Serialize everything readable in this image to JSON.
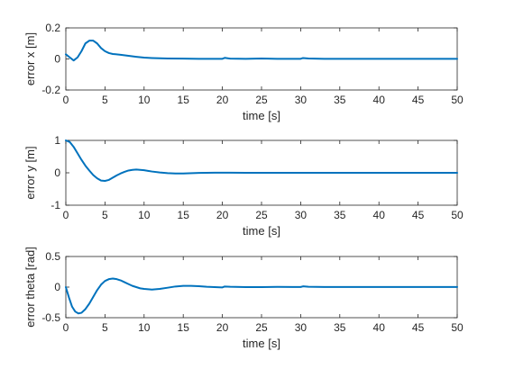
{
  "figure": {
    "background": "#ffffff",
    "line_color": "#0072BD",
    "axis_color": "#262626"
  },
  "chart_data": [
    {
      "type": "line",
      "xlabel": "time [s]",
      "ylabel": "error x [m]",
      "xlim": [
        0,
        50
      ],
      "ylim": [
        -0.2,
        0.2
      ],
      "xticks": [
        0,
        5,
        10,
        15,
        20,
        25,
        30,
        35,
        40,
        45,
        50
      ],
      "yticks": [
        -0.2,
        0,
        0.2
      ],
      "ytick_labels": [
        "-0.2",
        "0",
        "0.2"
      ],
      "grid": false,
      "series": [
        {
          "x": [
            0,
            0.5,
            1,
            1.5,
            2,
            2.5,
            3,
            3.5,
            4,
            4.5,
            5,
            5.5,
            6,
            7,
            8,
            9,
            10,
            11,
            12,
            13,
            15,
            17,
            19,
            20,
            20.3,
            21,
            23,
            25,
            27,
            29,
            30,
            30.3,
            31,
            33,
            35,
            40,
            45,
            50
          ],
          "y": [
            0.03,
            0.01,
            -0.01,
            0.01,
            0.05,
            0.1,
            0.118,
            0.118,
            0.1,
            0.07,
            0.05,
            0.038,
            0.032,
            0.027,
            0.02,
            0.014,
            0.009,
            0.006,
            0.004,
            0.003,
            0.002,
            0.001,
            0.0008,
            0.0008,
            0.007,
            0.002,
            0.001,
            0.003,
            0.001,
            0.001,
            0.001,
            0.006,
            0.003,
            0.001,
            0.001,
            0.0007,
            0.0005,
            0.0004
          ]
        }
      ]
    },
    {
      "type": "line",
      "xlabel": "time [s]",
      "ylabel": "error y [m]",
      "xlim": [
        0,
        50
      ],
      "ylim": [
        -1,
        1
      ],
      "xticks": [
        0,
        5,
        10,
        15,
        20,
        25,
        30,
        35,
        40,
        45,
        50
      ],
      "yticks": [
        -1,
        0,
        1
      ],
      "ytick_labels": [
        "-1",
        "0",
        "1"
      ],
      "grid": false,
      "series": [
        {
          "x": [
            0,
            0.5,
            1,
            1.5,
            2,
            2.5,
            3,
            3.5,
            4,
            4.5,
            5,
            5.5,
            6,
            6.5,
            7,
            7.5,
            8,
            8.5,
            9,
            9.5,
            10,
            10.5,
            11,
            12,
            13,
            14,
            15,
            17,
            19,
            21,
            23,
            25,
            30,
            35,
            40,
            45,
            50
          ],
          "y": [
            1,
            0.95,
            0.8,
            0.6,
            0.4,
            0.22,
            0.07,
            -0.07,
            -0.17,
            -0.24,
            -0.25,
            -0.22,
            -0.15,
            -0.08,
            -0.02,
            0.03,
            0.07,
            0.09,
            0.1,
            0.09,
            0.08,
            0.06,
            0.04,
            0.01,
            -0.01,
            -0.02,
            -0.02,
            -0.005,
            0.005,
            0.005,
            0,
            0,
            0,
            0,
            0,
            0,
            0
          ]
        }
      ]
    },
    {
      "type": "line",
      "xlabel": "time [s]",
      "ylabel": "error theta [rad]",
      "xlim": [
        0,
        50
      ],
      "ylim": [
        -0.5,
        0.5
      ],
      "xticks": [
        0,
        5,
        10,
        15,
        20,
        25,
        30,
        35,
        40,
        45,
        50
      ],
      "yticks": [
        -0.5,
        0,
        0.5
      ],
      "ytick_labels": [
        "-0.5",
        "0",
        "0.5"
      ],
      "grid": false,
      "series": [
        {
          "x": [
            0,
            0.4,
            0.8,
            1.2,
            1.6,
            2,
            2.5,
            3,
            3.5,
            4,
            4.5,
            5,
            5.5,
            6,
            6.5,
            7,
            7.5,
            8,
            8.5,
            9,
            9.5,
            10,
            11,
            12,
            13,
            14,
            15,
            16,
            17,
            18,
            19,
            20,
            20.3,
            21,
            23,
            25,
            27,
            29,
            30,
            30.3,
            31,
            33,
            35,
            40,
            45,
            50
          ],
          "y": [
            0,
            -0.17,
            -0.32,
            -0.4,
            -0.43,
            -0.42,
            -0.36,
            -0.27,
            -0.16,
            -0.05,
            0.04,
            0.1,
            0.13,
            0.14,
            0.13,
            0.11,
            0.08,
            0.05,
            0.02,
            0,
            -0.02,
            -0.03,
            -0.04,
            -0.03,
            -0.01,
            0.01,
            0.02,
            0.02,
            0.015,
            0.005,
            0,
            -0.005,
            0.01,
            0.005,
            0,
            0,
            0.003,
            0.002,
            0.002,
            0.012,
            0.005,
            0.002,
            0.001,
            0.001,
            0.001,
            0.001
          ]
        }
      ]
    }
  ]
}
